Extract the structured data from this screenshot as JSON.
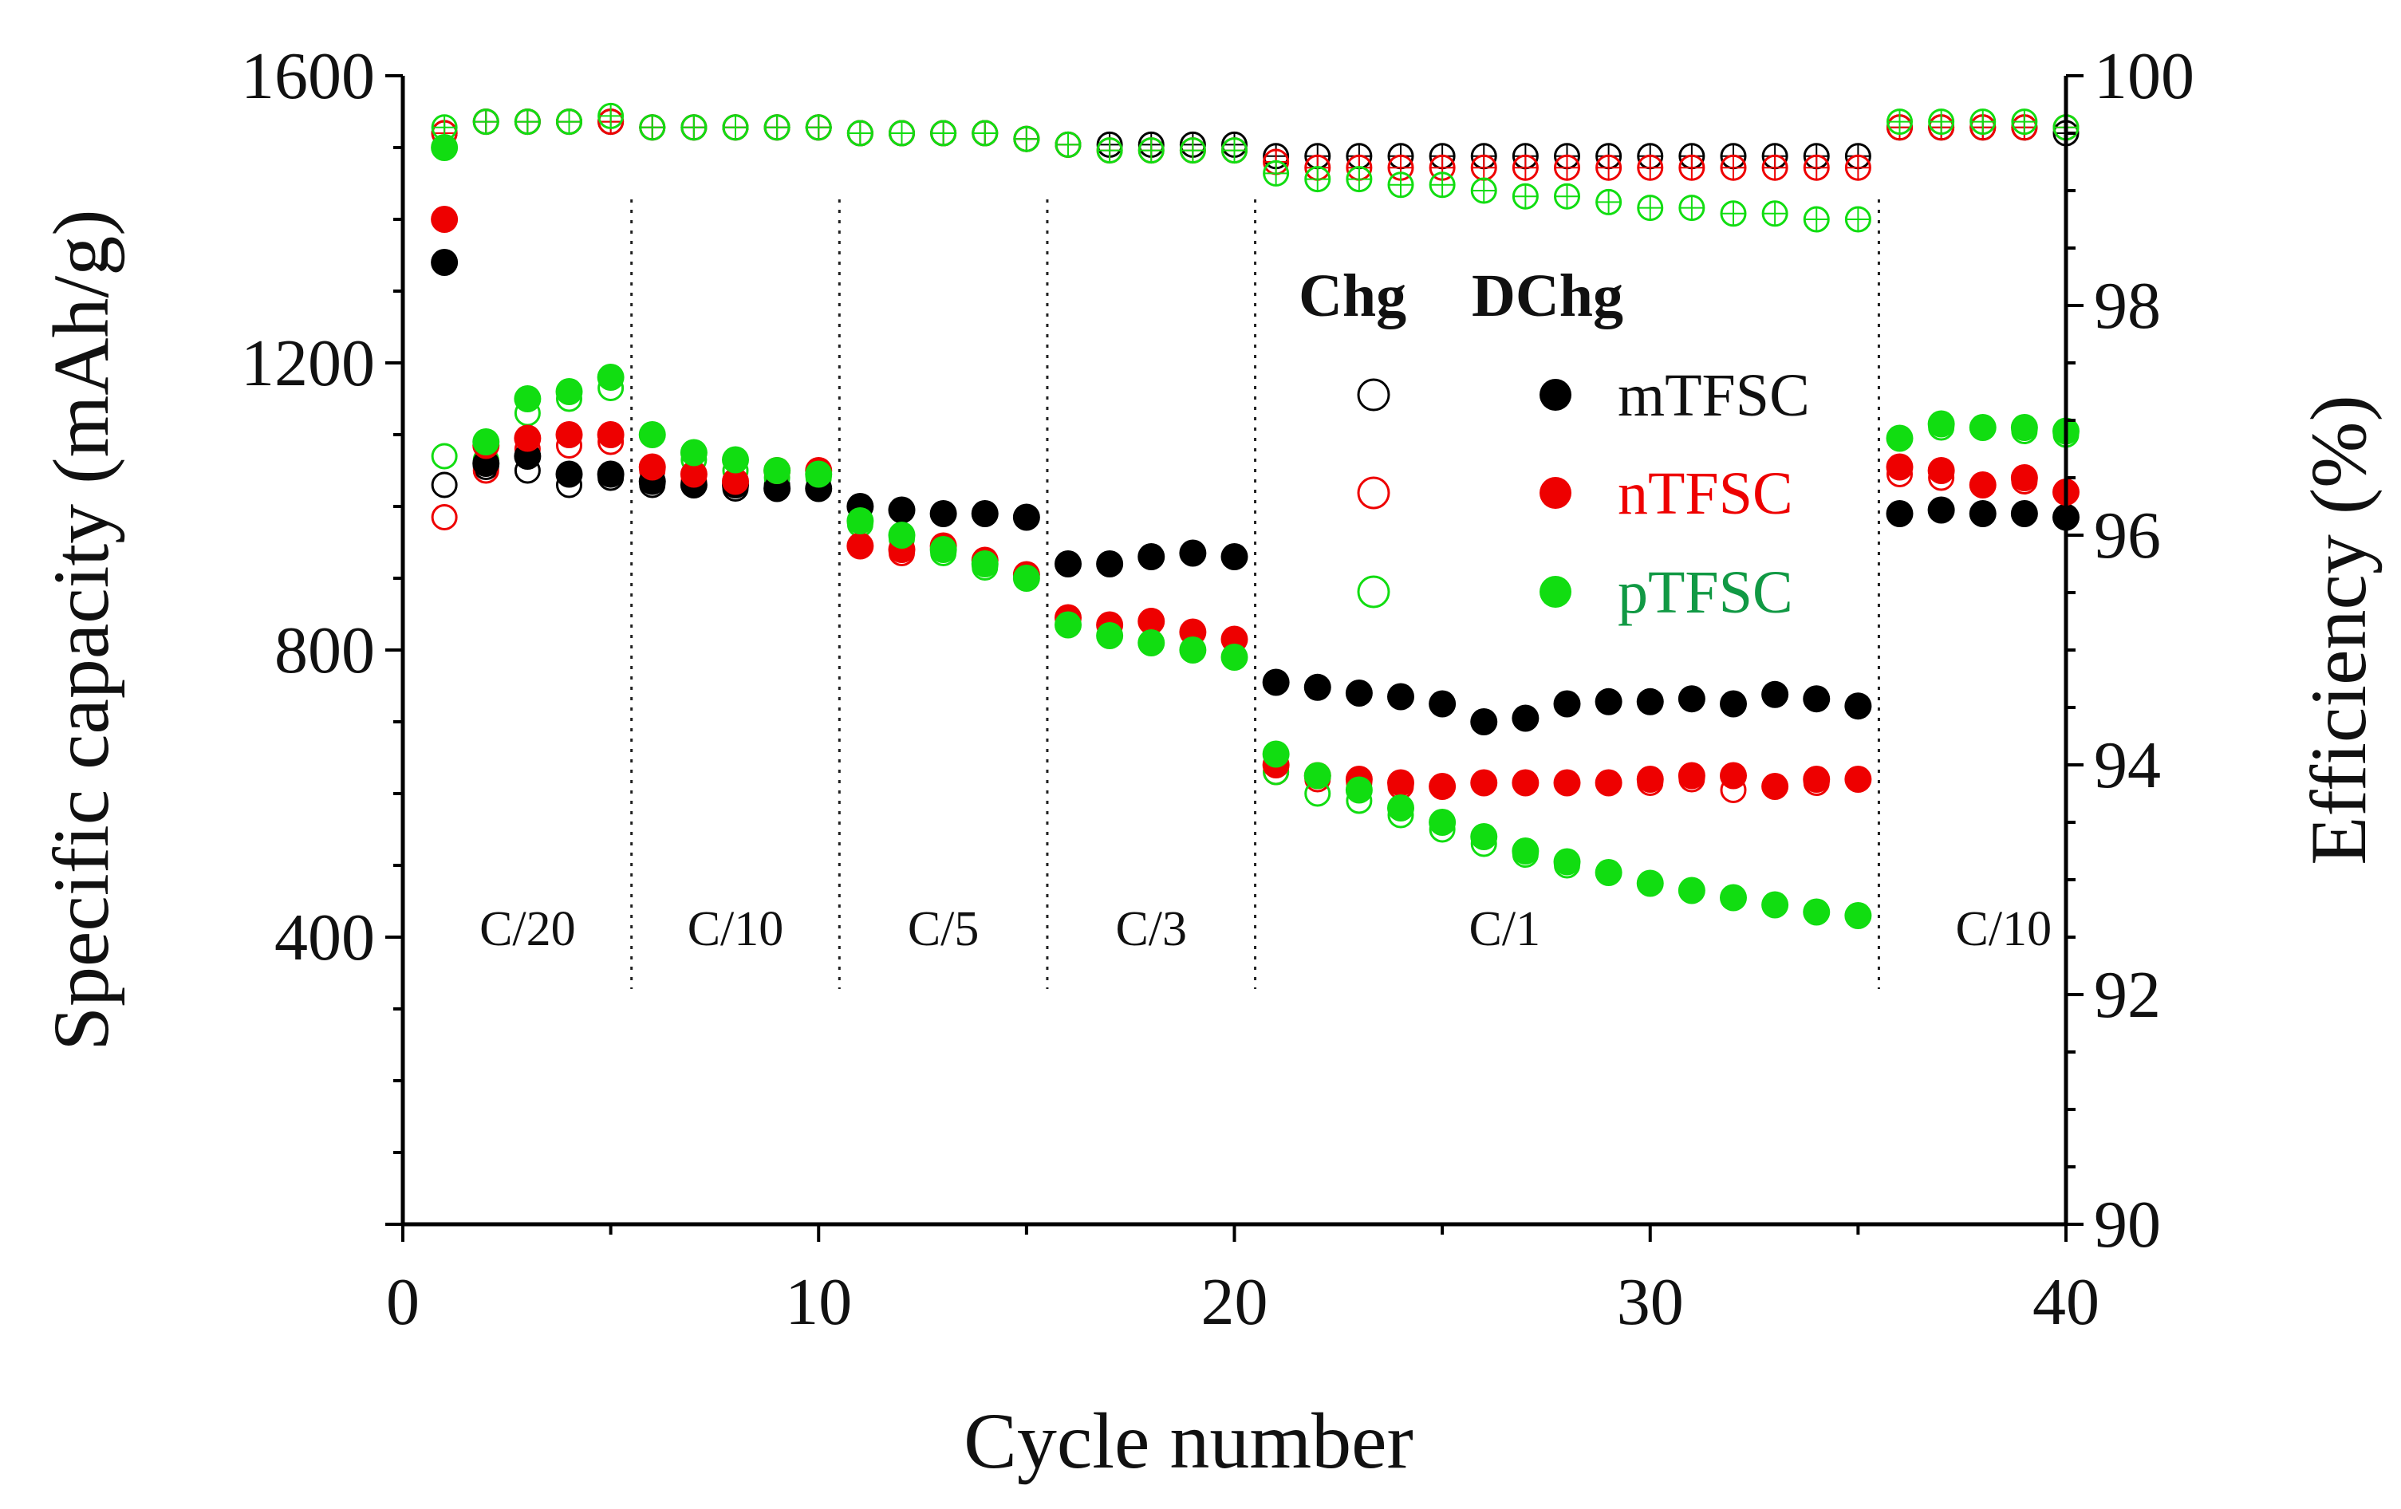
{
  "chart_data": {
    "type": "scatter",
    "xlabel": "Cycle number",
    "ylabel_left": "Specific capacity (mAh/g)",
    "ylabel_right": "Efficiency (%)",
    "xlim": [
      0,
      40
    ],
    "ylim_left": [
      0,
      1600
    ],
    "ylim_right": [
      90,
      100
    ],
    "x_ticks": [
      "0",
      "10",
      "20",
      "30",
      "40"
    ],
    "y_left_ticks": [
      "400",
      "800",
      "1200",
      "1600"
    ],
    "y_right_ticks": [
      "90",
      "92",
      "94",
      "96",
      "98",
      "100"
    ],
    "rate_sections": [
      {
        "label": "C/20",
        "x_center": 3.0
      },
      {
        "label": "C/10",
        "x_center": 8.0
      },
      {
        "label": "C/5",
        "x_center": 13.0
      },
      {
        "label": "C/3",
        "x_center": 18.0
      },
      {
        "label": "C/1",
        "x_center": 26.5
      },
      {
        "label": "C/10",
        "x_center": 38.5
      }
    ],
    "section_dividers": [
      5.5,
      10.5,
      15.5,
      20.5,
      35.5
    ],
    "legend": {
      "header_charge": "Chg",
      "header_discharge": "DChg",
      "placement": "right-center"
    },
    "series": [
      {
        "name": "mTFSC",
        "color": "#000000",
        "charge_capacity": [
          1030,
          1055,
          1050,
          1030,
          1040,
          1030,
          1030,
          1025,
          1030,
          1025,
          1000,
          995,
          990,
          990,
          985,
          920,
          920,
          930,
          935,
          930,
          755,
          748,
          740,
          735,
          725,
          700,
          705,
          725,
          728,
          728,
          732,
          725,
          738,
          732,
          722,
          990,
          995,
          990,
          990,
          985
        ],
        "discharge_capacity": [
          1340,
          1060,
          1070,
          1045,
          1045,
          1035,
          1030,
          1030,
          1025,
          1025,
          1000,
          995,
          990,
          990,
          985,
          920,
          920,
          930,
          935,
          930,
          755,
          748,
          740,
          735,
          725,
          700,
          705,
          725,
          728,
          728,
          732,
          725,
          738,
          732,
          722,
          990,
          995,
          990,
          990,
          985
        ],
        "efficiency": [
          99.5,
          99.6,
          99.6,
          99.6,
          99.6,
          99.55,
          99.55,
          99.55,
          99.55,
          99.55,
          99.5,
          99.5,
          99.5,
          99.5,
          99.45,
          99.4,
          99.4,
          99.4,
          99.4,
          99.4,
          99.3,
          99.3,
          99.3,
          99.3,
          99.3,
          99.3,
          99.3,
          99.3,
          99.3,
          99.3,
          99.3,
          99.3,
          99.3,
          99.3,
          99.3,
          99.55,
          99.55,
          99.55,
          99.55,
          99.5
        ]
      },
      {
        "name": "nTFSC",
        "color": "#ee0000",
        "charge_capacity": [
          985,
          1050,
          1080,
          1085,
          1090,
          1050,
          1035,
          1030,
          1050,
          1050,
          945,
          935,
          945,
          920,
          905,
          845,
          835,
          840,
          825,
          815,
          630,
          620,
          615,
          610,
          610,
          615,
          615,
          615,
          615,
          615,
          620,
          605,
          610,
          615,
          620,
          1045,
          1040,
          1030,
          1035,
          1020
        ],
        "discharge_capacity": [
          1400,
          1085,
          1095,
          1100,
          1100,
          1055,
          1045,
          1035,
          1050,
          1050,
          945,
          940,
          945,
          925,
          905,
          845,
          835,
          840,
          825,
          815,
          640,
          625,
          620,
          615,
          610,
          615,
          615,
          615,
          615,
          620,
          625,
          625,
          610,
          620,
          620,
          1055,
          1050,
          1030,
          1040,
          1020
        ],
        "efficiency": [
          99.5,
          99.6,
          99.6,
          99.6,
          99.6,
          99.55,
          99.55,
          99.55,
          99.55,
          99.55,
          99.5,
          99.5,
          99.5,
          99.5,
          99.45,
          99.4,
          99.35,
          99.35,
          99.35,
          99.35,
          99.25,
          99.2,
          99.2,
          99.2,
          99.2,
          99.2,
          99.2,
          99.2,
          99.2,
          99.2,
          99.2,
          99.2,
          99.2,
          99.2,
          99.2,
          99.55,
          99.55,
          99.55,
          99.55,
          99.55
        ]
      },
      {
        "name": "pTFSC",
        "color": "#11dd11",
        "charge_capacity": [
          1070,
          1065,
          1130,
          1150,
          1165,
          1100,
          1065,
          1050,
          1040,
          1040,
          975,
          955,
          935,
          915,
          900,
          835,
          820,
          810,
          800,
          790,
          630,
          600,
          590,
          570,
          550,
          530,
          515,
          500,
          490,
          475,
          465,
          455,
          445,
          435,
          430,
          1095,
          1110,
          1110,
          1105,
          1100
        ],
        "discharge_capacity": [
          1500,
          1090,
          1150,
          1160,
          1180,
          1100,
          1075,
          1065,
          1050,
          1045,
          980,
          960,
          940,
          920,
          900,
          835,
          820,
          810,
          800,
          790,
          655,
          625,
          605,
          580,
          560,
          540,
          520,
          505,
          490,
          475,
          465,
          455,
          445,
          435,
          430,
          1095,
          1115,
          1110,
          1110,
          1105
        ],
        "efficiency": [
          99.55,
          99.6,
          99.6,
          99.6,
          99.65,
          99.55,
          99.55,
          99.55,
          99.55,
          99.55,
          99.5,
          99.5,
          99.5,
          99.5,
          99.45,
          99.4,
          99.35,
          99.35,
          99.35,
          99.35,
          99.15,
          99.1,
          99.1,
          99.05,
          99.05,
          99.0,
          98.95,
          98.95,
          98.9,
          98.85,
          98.85,
          98.8,
          98.8,
          98.75,
          98.75,
          99.6,
          99.6,
          99.6,
          99.6,
          99.55
        ]
      }
    ]
  }
}
